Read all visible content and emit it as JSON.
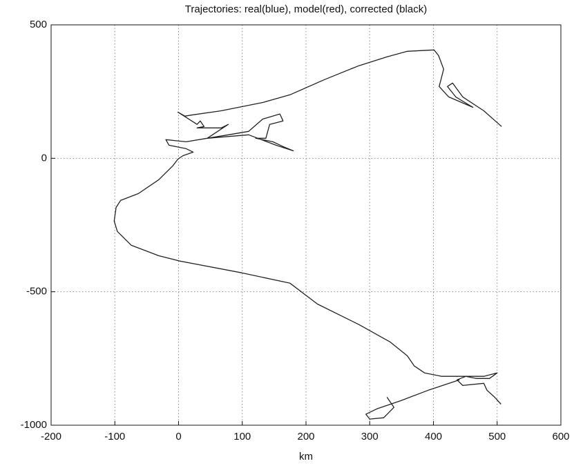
{
  "chart_data": {
    "type": "line",
    "title": "Trajectories: real(blue), model(red), corrected (black)",
    "xlabel": "km",
    "color": "#222222",
    "grid": true,
    "xlim": [
      -200,
      600
    ],
    "xticks": [
      -200,
      -100,
      0,
      100,
      200,
      300,
      400,
      500,
      600
    ],
    "ylim": [
      -1000,
      500
    ],
    "yticks": [
      -1000,
      -500,
      0,
      500
    ],
    "x": [
      507,
      479,
      446,
      430,
      422,
      435,
      462,
      424,
      409,
      416,
      408,
      401,
      359,
      327,
      283,
      229,
      175,
      132,
      67,
      23,
      10,
      -1,
      29,
      34,
      40,
      29,
      67,
      78,
      45,
      78,
      110,
      132,
      159,
      164,
      143,
      137,
      121,
      148,
      164,
      180,
      153,
      110,
      45,
      12,
      -20,
      -15,
      12,
      23,
      7,
      -1,
      -9,
      -31,
      -63,
      -91,
      -98,
      -101,
      -96,
      -74,
      -31,
      2,
      99,
      175,
      218,
      283,
      332,
      359,
      370,
      386,
      413,
      479,
      500,
      488,
      467,
      451,
      437,
      446,
      479,
      484,
      496,
      506,
      null,
      441,
      392,
      349,
      311,
      294,
      300,
      322,
      338,
      327
    ],
    "y": [
      119,
      178,
      230,
      282,
      269,
      230,
      191,
      230,
      269,
      334,
      385,
      406,
      401,
      380,
      347,
      295,
      238,
      209,
      178,
      163,
      158,
      173,
      127,
      140,
      119,
      114,
      114,
      127,
      75,
      88,
      101,
      147,
      166,
      140,
      127,
      75,
      75,
      62,
      44,
      28,
      49,
      88,
      75,
      62,
      70,
      49,
      36,
      23,
      10,
      -3,
      -28,
      -80,
      -132,
      -158,
      -184,
      -235,
      -274,
      -326,
      -365,
      -385,
      -429,
      -468,
      -546,
      -623,
      -688,
      -740,
      -778,
      -804,
      -817,
      -817,
      -804,
      -825,
      -825,
      -817,
      -830,
      -851,
      -843,
      -869,
      -895,
      -921,
      null,
      -830,
      -869,
      -908,
      -939,
      -959,
      -977,
      -972,
      -933,
      -895
    ]
  }
}
